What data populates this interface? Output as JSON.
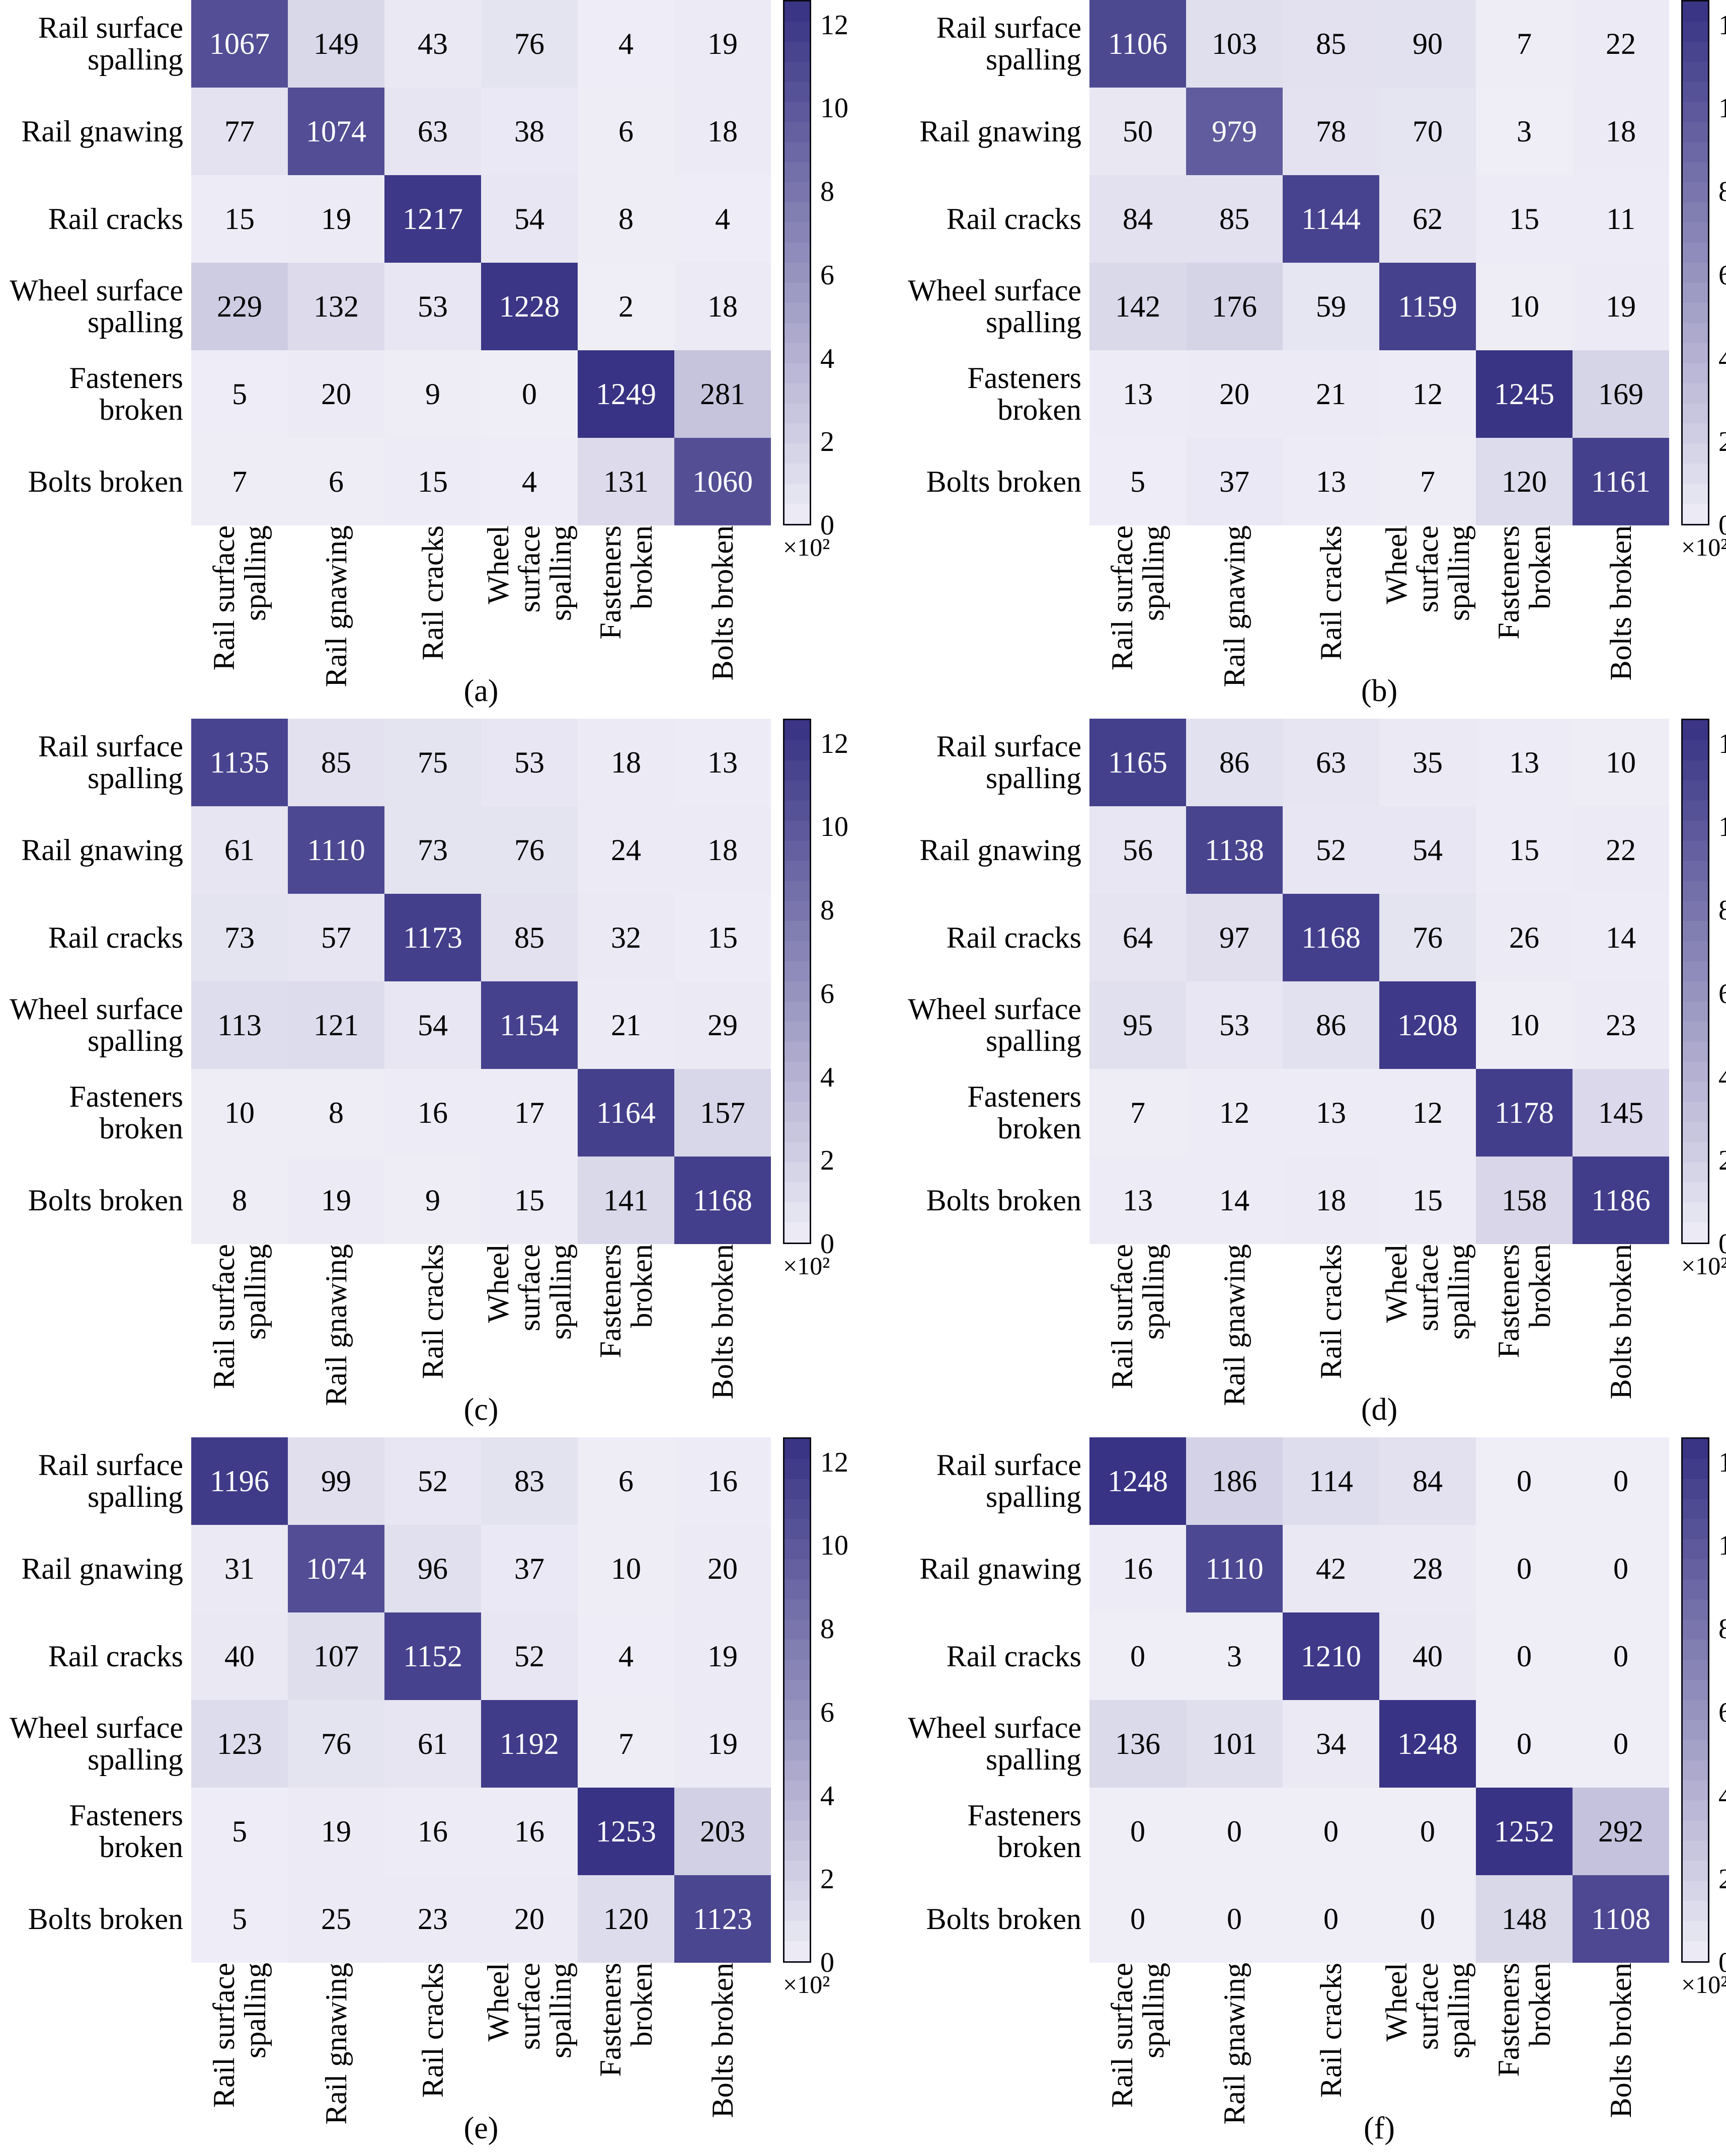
{
  "chart_data": {
    "type": "heatmap",
    "description": "Six 6x6 confusion matrices of railway defect classification results, panels (a) through (f), shared purple colormap",
    "categories": [
      "Rail surface spalling",
      "Rail gnawing",
      "Rail cracks",
      "Wheel surface spalling",
      "Fasteners broken",
      "Bolts broken"
    ],
    "y_tick_lines": [
      [
        "Rail surface",
        "spalling"
      ],
      [
        "Rail gnawing"
      ],
      [
        "Rail cracks"
      ],
      [
        "Wheel surface",
        "spalling"
      ],
      [
        "Fasteners",
        "broken"
      ],
      [
        "Bolts broken"
      ]
    ],
    "x_tick_lines": [
      [
        "Rail surface",
        "spalling"
      ],
      [
        "Rail gnawing"
      ],
      [
        "Rail cracks"
      ],
      [
        "Wheel",
        "surface",
        "spalling"
      ],
      [
        "Fasteners",
        "broken"
      ],
      [
        "Bolts broken"
      ]
    ],
    "colorbar": {
      "tick_labels": [
        "12",
        "10",
        "8",
        "6",
        "4",
        "2",
        "0"
      ],
      "tick_values": [
        1200,
        1000,
        800,
        600,
        400,
        200,
        0
      ],
      "multiplier": "×10²",
      "vmin": 0,
      "vmax_axis": 1260,
      "vmax_color": 1250,
      "color_min": "#efeef7",
      "color_max": "#383384",
      "bands": 26
    },
    "panels": [
      {
        "label": "(a)",
        "values": [
          [
            1067,
            149,
            43,
            76,
            4,
            19
          ],
          [
            77,
            1074,
            63,
            38,
            6,
            18
          ],
          [
            15,
            19,
            1217,
            54,
            8,
            4
          ],
          [
            229,
            132,
            53,
            1228,
            2,
            18
          ],
          [
            5,
            20,
            9,
            0,
            1249,
            281
          ],
          [
            7,
            6,
            15,
            4,
            131,
            1060
          ]
        ]
      },
      {
        "label": "(b)",
        "values": [
          [
            1106,
            103,
            85,
            90,
            7,
            22
          ],
          [
            50,
            979,
            78,
            70,
            3,
            18
          ],
          [
            84,
            85,
            1144,
            62,
            15,
            11
          ],
          [
            142,
            176,
            59,
            1159,
            10,
            19
          ],
          [
            13,
            20,
            21,
            12,
            1245,
            169
          ],
          [
            5,
            37,
            13,
            7,
            120,
            1161
          ]
        ]
      },
      {
        "label": "(c)",
        "values": [
          [
            1135,
            85,
            75,
            53,
            18,
            13
          ],
          [
            61,
            1110,
            73,
            76,
            24,
            18
          ],
          [
            73,
            57,
            1173,
            85,
            32,
            15
          ],
          [
            113,
            121,
            54,
            1154,
            21,
            29
          ],
          [
            10,
            8,
            16,
            17,
            1164,
            157
          ],
          [
            8,
            19,
            9,
            15,
            141,
            1168
          ]
        ]
      },
      {
        "label": "(d)",
        "values": [
          [
            1165,
            86,
            63,
            35,
            13,
            10
          ],
          [
            56,
            1138,
            52,
            54,
            15,
            22
          ],
          [
            64,
            97,
            1168,
            76,
            26,
            14
          ],
          [
            95,
            53,
            86,
            1208,
            10,
            23
          ],
          [
            7,
            12,
            13,
            12,
            1178,
            145
          ],
          [
            13,
            14,
            18,
            15,
            158,
            1186
          ]
        ]
      },
      {
        "label": "(e)",
        "values": [
          [
            1196,
            99,
            52,
            83,
            6,
            16
          ],
          [
            31,
            1074,
            96,
            37,
            10,
            20
          ],
          [
            40,
            107,
            1152,
            52,
            4,
            19
          ],
          [
            123,
            76,
            61,
            1192,
            7,
            19
          ],
          [
            5,
            19,
            16,
            16,
            1253,
            203
          ],
          [
            5,
            25,
            23,
            20,
            120,
            1123
          ]
        ]
      },
      {
        "label": "(f)",
        "values": [
          [
            1248,
            186,
            114,
            84,
            0,
            0
          ],
          [
            16,
            1110,
            42,
            28,
            0,
            0
          ],
          [
            0,
            3,
            1210,
            40,
            0,
            0
          ],
          [
            136,
            101,
            34,
            1248,
            0,
            0
          ],
          [
            0,
            0,
            0,
            0,
            1252,
            292
          ],
          [
            0,
            0,
            0,
            0,
            148,
            1108
          ]
        ]
      }
    ]
  }
}
